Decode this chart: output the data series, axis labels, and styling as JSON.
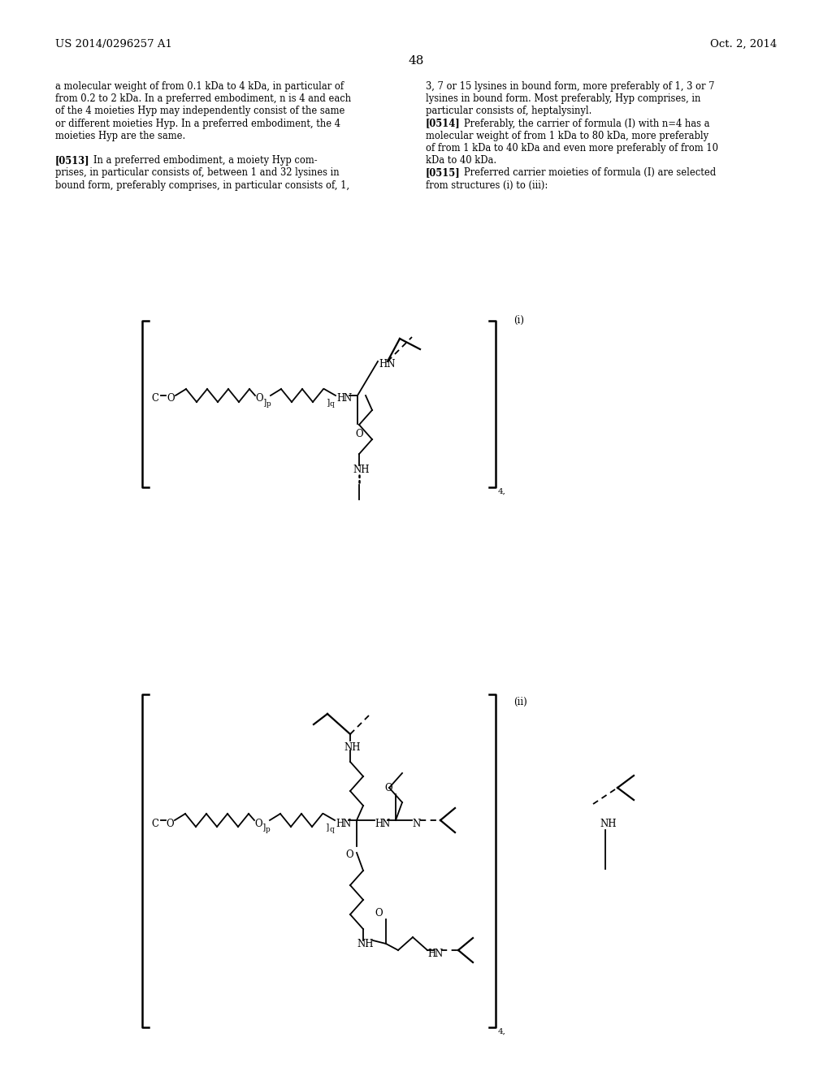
{
  "background_color": "#ffffff",
  "header_left": "US 2014/0296257 A1",
  "header_right": "Oct. 2, 2014",
  "page_number": "48",
  "col1_lines": [
    "a molecular weight of from 0.1 kDa to 4 kDa, in particular of",
    "from 0.2 to 2 kDa. In a preferred embodiment, n is 4 and each",
    "of the 4 moieties Hyp may independently consist of the same",
    "or different moieties Hyp. In a preferred embodiment, the 4",
    "moieties Hyp are the same.",
    "",
    "[0513]",
    "   In a preferred embodiment, a moiety Hyp com-",
    "prises, in particular consists of, between 1 and 32 lysines in",
    "bound form, preferably comprises, in particular consists of, 1,"
  ],
  "col2_lines": [
    "3, 7 or 15 lysines in bound form, more preferably of 1, 3 or 7",
    "lysines in bound form. Most preferably, Hyp comprises, in",
    "particular consists of, heptalysinyl.",
    "[0514]",
    "   Preferably, the carrier of formula (I) with n=4 has a",
    "molecular weight of from 1 kDa to 80 kDa, more preferably",
    "of from 1 kDa to 40 kDa and even more preferably of from 10",
    "kDa to 40 kDa.",
    "[0515]",
    "   Preferred carrier moieties of formula (I) are selected",
    "from structures (i) to (iii):"
  ],
  "label_i": "(i)",
  "label_ii": "(ii)"
}
